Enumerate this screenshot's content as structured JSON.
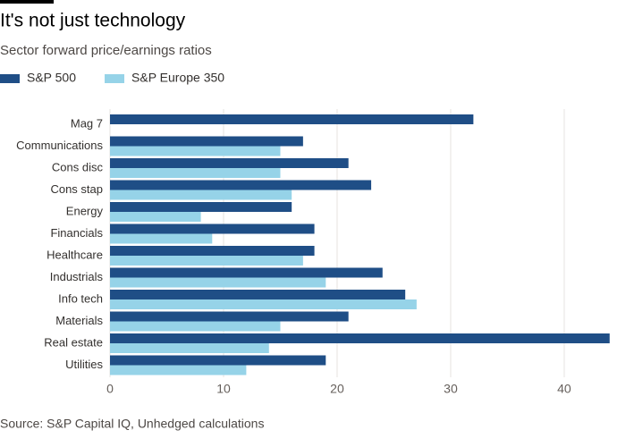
{
  "chart_data": {
    "type": "bar",
    "orientation": "horizontal",
    "title": "It's not just technology",
    "subtitle": "Sector forward price/earnings ratios",
    "source": "Source: S&P Capital IQ, Unhedged calculations",
    "categories": [
      "Mag 7",
      "Communications",
      "Cons disc",
      "Cons stap",
      "Energy",
      "Financials",
      "Healthcare",
      "Industrials",
      "Info tech",
      "Materials",
      "Real estate",
      "Utilities"
    ],
    "series": [
      {
        "name": "S&P 500",
        "color": "#1f4e86",
        "values": [
          32,
          17,
          21,
          23,
          16,
          18,
          18,
          24,
          26,
          21,
          44,
          19
        ]
      },
      {
        "name": "S&P Europe 350",
        "color": "#96d3e8",
        "values": [
          null,
          15,
          15,
          16,
          8,
          9,
          17,
          19,
          27,
          15,
          14,
          12
        ]
      }
    ],
    "xlim": [
      0,
      44.1
    ],
    "xticks": [
      0,
      10,
      20,
      30,
      40
    ],
    "grid": true,
    "legend": "top-left"
  }
}
